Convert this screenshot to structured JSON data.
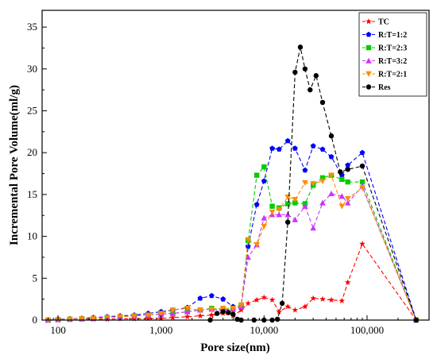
{
  "chart_data": {
    "type": "line",
    "title": "",
    "xlabel": "Pore size(nm)",
    "ylabel": "Incremental Pore Volume(ml/g)",
    "x_scale": "log",
    "xlim": [
      70,
      400000
    ],
    "ylim": [
      0,
      37
    ],
    "x_ticks": [
      100,
      1000,
      10000,
      100000
    ],
    "x_tick_labels": [
      "100",
      "1,000",
      "10,000",
      "100,000"
    ],
    "y_ticks": [
      0,
      5,
      10,
      15,
      20,
      25,
      30,
      35
    ],
    "y_tick_labels": [
      "0",
      "5",
      "10",
      "15",
      "20",
      "25",
      "30",
      "35"
    ],
    "grid": false,
    "legend_position": "top-right",
    "series": [
      {
        "name": "TC",
        "color": "#ff0000",
        "marker": "star",
        "x": [
          80,
          100,
          130,
          170,
          220,
          300,
          400,
          550,
          750,
          1000,
          1300,
          1800,
          2400,
          3100,
          4000,
          5000,
          6000,
          7000,
          8500,
          10000,
          12000,
          14000,
          17000,
          20000,
          25000,
          30000,
          37000,
          45000,
          57000,
          65000,
          90000,
          300000
        ],
        "y": [
          0,
          0.05,
          0.05,
          0.1,
          0.1,
          0.1,
          0.15,
          0.15,
          0.2,
          0.2,
          0.3,
          0.4,
          0.5,
          0.6,
          0.8,
          0.5,
          1.2,
          2.0,
          2.4,
          2.7,
          2.4,
          1.0,
          1.6,
          1.2,
          1.6,
          2.6,
          2.5,
          2.4,
          2.3,
          4.5,
          9.1,
          0
        ]
      },
      {
        "name": "R:T=1:2",
        "color": "#0000ff",
        "marker": "pentagon",
        "x": [
          80,
          100,
          130,
          170,
          220,
          300,
          400,
          550,
          750,
          1000,
          1300,
          1800,
          2400,
          3100,
          4000,
          5000,
          6000,
          7000,
          8500,
          10000,
          12000,
          14000,
          17000,
          20000,
          25000,
          30000,
          37000,
          45000,
          57000,
          65000,
          90000,
          300000
        ],
        "y": [
          0,
          0.1,
          0.15,
          0.2,
          0.3,
          0.4,
          0.5,
          0.6,
          0.8,
          1.0,
          1.2,
          1.5,
          2.6,
          2.9,
          2.5,
          1.6,
          1.7,
          8.8,
          13.8,
          16.6,
          20.5,
          20.4,
          21.4,
          20.5,
          17.9,
          20.8,
          20.4,
          19.5,
          17.3,
          18.5,
          20.0,
          0
        ]
      },
      {
        "name": "R:T=2:3",
        "color": "#00cc00",
        "marker": "square",
        "x": [
          80,
          100,
          130,
          170,
          220,
          300,
          400,
          550,
          750,
          1000,
          1300,
          1800,
          2400,
          3100,
          4000,
          5000,
          6000,
          7000,
          8500,
          10000,
          12000,
          14000,
          17000,
          20000,
          25000,
          30000,
          37000,
          45000,
          57000,
          65000,
          90000,
          300000
        ],
        "y": [
          0,
          0.05,
          0.1,
          0.15,
          0.2,
          0.3,
          0.4,
          0.5,
          0.6,
          0.7,
          0.8,
          1.0,
          1.2,
          1.4,
          1.2,
          1.4,
          1.8,
          9.5,
          17.3,
          18.3,
          13.6,
          13.4,
          13.9,
          14.0,
          13.9,
          16.1,
          17.0,
          17.3,
          16.8,
          16.5,
          16.5,
          0
        ]
      },
      {
        "name": "R:T=3:2",
        "color": "#cc33ff",
        "marker": "triangle-up",
        "x": [
          80,
          100,
          130,
          170,
          220,
          300,
          400,
          550,
          750,
          1000,
          1300,
          1800,
          2400,
          3100,
          4000,
          5000,
          6000,
          7000,
          8500,
          10000,
          12000,
          14000,
          17000,
          20000,
          25000,
          30000,
          37000,
          45000,
          57000,
          65000,
          90000,
          300000
        ],
        "y": [
          0,
          0.05,
          0.1,
          0.15,
          0.2,
          0.3,
          0.4,
          0.5,
          0.6,
          0.7,
          0.8,
          1.0,
          1.2,
          1.3,
          1.1,
          1.3,
          1.6,
          7.5,
          9.0,
          12.2,
          12.6,
          12.6,
          12.6,
          12.0,
          13.6,
          11.0,
          14.0,
          15.1,
          14.8,
          14.0,
          16.0,
          0
        ]
      },
      {
        "name": "R:T=2:1",
        "color": "#ff8c00",
        "marker": "triangle-down",
        "x": [
          80,
          100,
          130,
          170,
          220,
          300,
          400,
          550,
          750,
          1000,
          1300,
          1800,
          2400,
          3100,
          4000,
          5000,
          6000,
          7000,
          8500,
          10000,
          12000,
          14000,
          17000,
          20000,
          25000,
          30000,
          37000,
          45000,
          57000,
          65000,
          90000,
          300000
        ],
        "y": [
          0,
          0.05,
          0.1,
          0.15,
          0.2,
          0.3,
          0.4,
          0.5,
          0.6,
          0.8,
          1.2,
          1.4,
          1.2,
          1.3,
          1.4,
          1.4,
          1.8,
          9.6,
          9.0,
          11.2,
          12.9,
          13.2,
          14.7,
          14.4,
          16.4,
          16.3,
          16.6,
          17.3,
          13.6,
          14.5,
          15.8,
          0
        ]
      },
      {
        "name": "Res",
        "color": "#000000",
        "marker": "circle",
        "x": [
          3000,
          3500,
          4000,
          4500,
          5000,
          5500,
          6000,
          8000,
          10000,
          12000,
          13500,
          15000,
          17000,
          20000,
          22500,
          25000,
          28000,
          32000,
          37000,
          45000,
          55000,
          65000,
          90000,
          300000
        ],
        "y": [
          0,
          0.8,
          1.0,
          0.9,
          0.7,
          0.1,
          0,
          0,
          0,
          0,
          0.1,
          2.0,
          11.7,
          29.6,
          32.6,
          30.0,
          27.5,
          29.2,
          26.0,
          22.0,
          17.7,
          18.0,
          18.4,
          0
        ]
      }
    ]
  }
}
